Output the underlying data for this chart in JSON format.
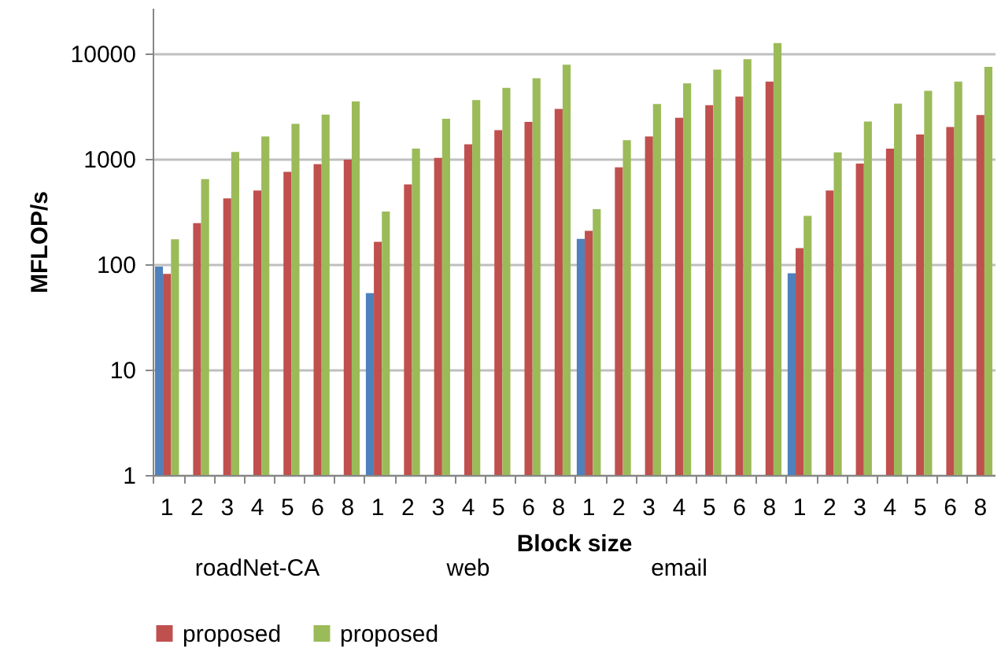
{
  "chart_data": {
    "type": "bar",
    "xlabel": "Block size",
    "ylabel": "MFLOP/s",
    "categories": [
      "1",
      "2",
      "3",
      "4",
      "5",
      "6",
      "8",
      "1",
      "2",
      "3",
      "4",
      "5",
      "6",
      "8",
      "1",
      "2",
      "3",
      "4",
      "5",
      "6",
      "8",
      "1",
      "2",
      "3",
      "4",
      "5",
      "6",
      "8"
    ],
    "series": [
      {
        "color": "#4f81bd",
        "values": [
          95,
          null,
          null,
          null,
          null,
          null,
          null,
          53,
          null,
          null,
          null,
          null,
          null,
          null,
          174,
          null,
          null,
          null,
          null,
          null,
          null,
          82,
          null,
          null,
          null,
          null,
          null,
          null
        ]
      },
      {
        "name": "proposed",
        "color": "#c0504d",
        "values": [
          81,
          245,
          420,
          500,
          750,
          890,
          980,
          163,
          570,
          1020,
          1370,
          1870,
          2240,
          2970,
          207,
          830,
          1630,
          2450,
          3220,
          3900,
          5400,
          142,
          500,
          900,
          1250,
          1700,
          2000,
          2600
        ]
      },
      {
        "name": "proposed",
        "color": "#9bbb59",
        "values": [
          172,
          640,
          1160,
          1630,
          2140,
          2620,
          3500,
          315,
          1250,
          2400,
          3600,
          4700,
          5800,
          7800,
          333,
          1500,
          3300,
          5200,
          7000,
          8800,
          12500,
          287,
          1150,
          2260,
          3330,
          4400,
          5400,
          7450
        ]
      }
    ],
    "log": "y",
    "ylim": [
      1,
      27000
    ],
    "yticks": [
      1,
      10,
      100,
      1000,
      10000
    ],
    "grid": "y",
    "legend": "bottom",
    "annotations": [
      "roadNet-CA",
      "web",
      "email"
    ]
  }
}
